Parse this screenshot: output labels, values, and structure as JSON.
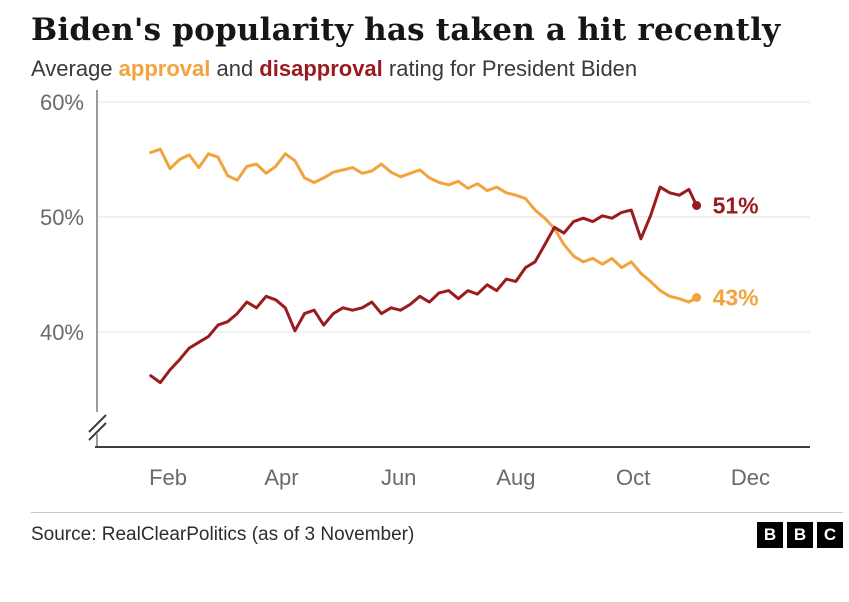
{
  "header": {
    "title": "Biden's popularity has taken a hit recently",
    "subtitle_prefix": "Average ",
    "subtitle_approval": "approval",
    "subtitle_middle": " and ",
    "subtitle_disapproval": "disapproval",
    "subtitle_suffix": " rating for President Biden"
  },
  "footer": {
    "source": "Source: RealClearPolitics (as of 3 November)",
    "logo_letters": [
      "B",
      "B",
      "C"
    ]
  },
  "colors": {
    "approval": "#F2A33C",
    "disapproval": "#9A1B1F",
    "axis": "#3f3f3f",
    "axis_light": "#9a9a9a",
    "grid": "#e3e3e3",
    "tick_text": "#6a6a6a"
  },
  "chart_data": {
    "type": "line",
    "title": "Biden's popularity has taken a hit recently",
    "subtitle": "Average approval and disapproval rating for President Biden",
    "x_unit": "day_of_year_2021",
    "x": [
      23,
      28,
      33,
      38,
      43,
      48,
      53,
      58,
      63,
      68,
      73,
      78,
      83,
      88,
      93,
      98,
      103,
      108,
      113,
      118,
      123,
      128,
      133,
      138,
      143,
      148,
      153,
      158,
      163,
      168,
      173,
      178,
      183,
      188,
      193,
      198,
      203,
      208,
      213,
      218,
      223,
      228,
      233,
      238,
      243,
      248,
      253,
      258,
      263,
      268,
      273,
      278,
      283,
      288,
      293,
      298,
      303,
      307
    ],
    "series": [
      {
        "name": "approval",
        "color": "#F2A33C",
        "end_label": "43%",
        "end_value": 43,
        "values": [
          55.6,
          55.9,
          54.2,
          55.0,
          55.4,
          54.3,
          55.5,
          55.2,
          53.6,
          53.2,
          54.4,
          54.6,
          53.8,
          54.4,
          55.5,
          54.9,
          53.4,
          53.0,
          53.4,
          53.9,
          54.1,
          54.3,
          53.8,
          54.0,
          54.6,
          53.9,
          53.5,
          53.8,
          54.1,
          53.4,
          53.0,
          52.8,
          53.1,
          52.5,
          52.9,
          52.3,
          52.6,
          52.1,
          51.9,
          51.6,
          50.6,
          49.9,
          49.0,
          47.6,
          46.6,
          46.1,
          46.4,
          45.9,
          46.4,
          45.6,
          46.1,
          45.1,
          44.4,
          43.6,
          43.1,
          42.9,
          42.6,
          43.0
        ]
      },
      {
        "name": "disapproval",
        "color": "#9A1B1F",
        "end_label": "51%",
        "end_value": 51,
        "values": [
          36.2,
          35.6,
          36.7,
          37.6,
          38.6,
          39.1,
          39.6,
          40.6,
          40.9,
          41.6,
          42.6,
          42.1,
          43.1,
          42.8,
          42.1,
          40.1,
          41.6,
          41.9,
          40.6,
          41.6,
          42.1,
          41.9,
          42.1,
          42.6,
          41.6,
          42.1,
          41.9,
          42.4,
          43.1,
          42.6,
          43.4,
          43.6,
          42.9,
          43.6,
          43.3,
          44.1,
          43.6,
          44.6,
          44.4,
          45.6,
          46.1,
          47.6,
          49.1,
          48.6,
          49.6,
          49.9,
          49.6,
          50.1,
          49.9,
          50.4,
          50.6,
          48.1,
          50.1,
          52.6,
          52.1,
          51.9,
          52.4,
          51.0
        ]
      }
    ],
    "xticks": [
      {
        "label": "Feb",
        "day": 32
      },
      {
        "label": "Apr",
        "day": 91
      },
      {
        "label": "Jun",
        "day": 152
      },
      {
        "label": "Aug",
        "day": 213
      },
      {
        "label": "Oct",
        "day": 274
      },
      {
        "label": "Dec",
        "day": 335
      }
    ],
    "yticks": [
      {
        "label": "60%",
        "value": 60
      },
      {
        "label": "50%",
        "value": 50
      },
      {
        "label": "40%",
        "value": 40
      }
    ],
    "xlim": [
      -6,
      366
    ],
    "ylim": [
      30,
      60
    ],
    "axis_break": true,
    "grid": "horizontal",
    "legend": "inline-in-subtitle"
  }
}
